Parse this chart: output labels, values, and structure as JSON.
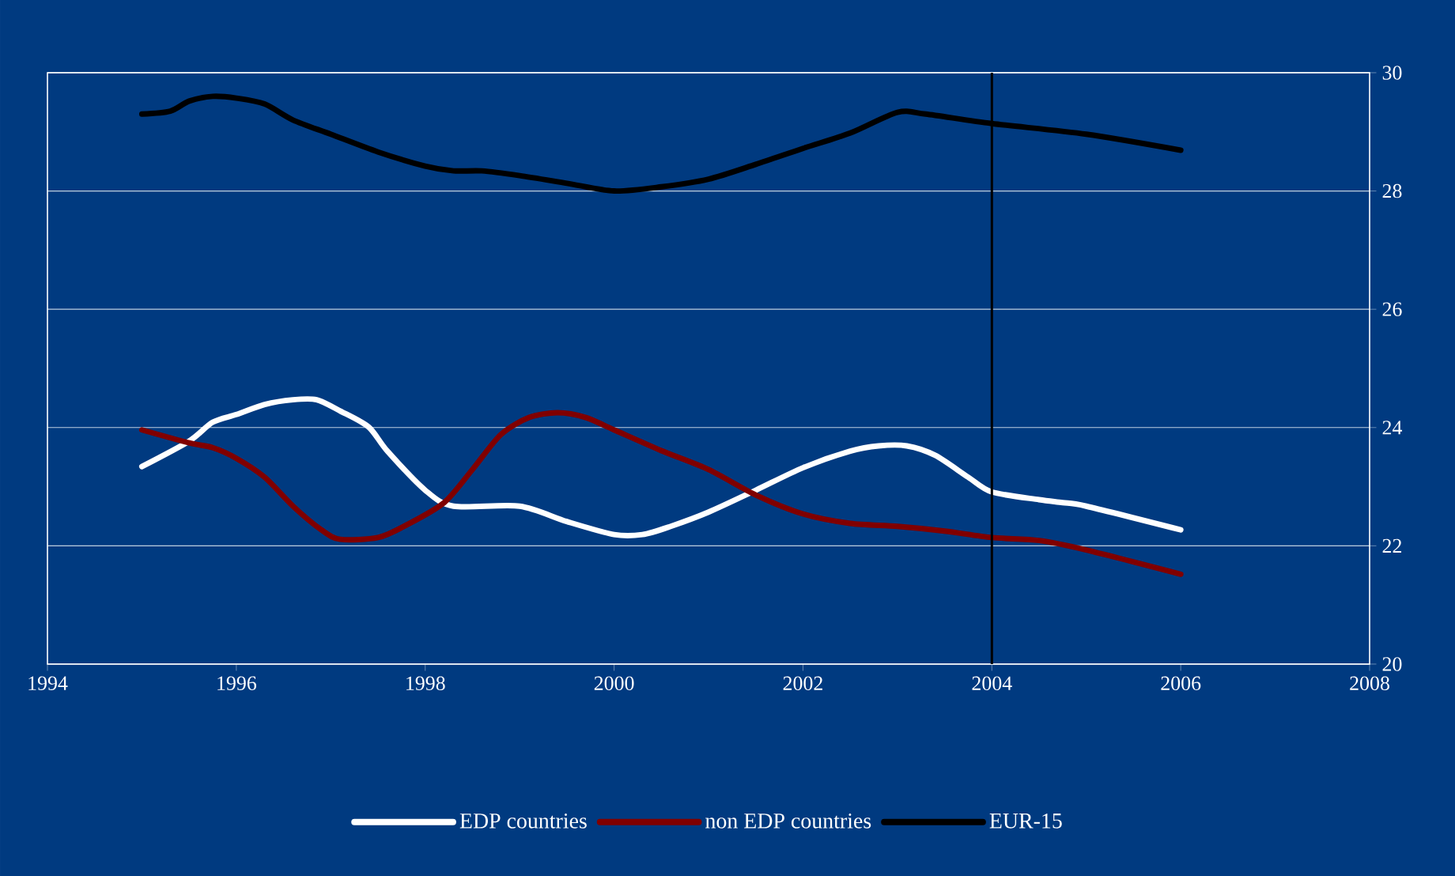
{
  "chart_data": {
    "type": "line",
    "series": [
      {
        "name": "EDP countries",
        "color": "#ffffff",
        "x": [
          1995,
          1995.5,
          1995.75,
          1996,
          1996.3,
          1996.6,
          1996.85,
          1997.1,
          1997.4,
          1997.6,
          1998,
          1998.3,
          1999,
          1999.5,
          2000,
          2000.3,
          2000.6,
          2001,
          2001.5,
          2002,
          2002.5,
          2002.8,
          2003.1,
          2003.4,
          2003.75,
          2004,
          2004.5,
          2004.75,
          2005,
          2006
        ],
        "values": [
          23.34,
          23.77,
          24.09,
          24.22,
          24.39,
          24.47,
          24.47,
          24.28,
          24.01,
          23.6,
          22.94,
          22.67,
          22.67,
          22.41,
          22.19,
          22.19,
          22.33,
          22.57,
          22.94,
          23.32,
          23.6,
          23.69,
          23.69,
          23.53,
          23.16,
          22.91,
          22.78,
          22.73,
          22.67,
          22.27
        ]
      },
      {
        "name": "non EDP countries",
        "color": "#800000",
        "x": [
          1995,
          1995.5,
          1995.75,
          1996,
          1996.3,
          1996.6,
          1996.9,
          1997.1,
          1997.5,
          1997.8,
          1998.2,
          1998.5,
          1998.8,
          1999.1,
          1999.4,
          1999.7,
          2000,
          2000.5,
          2001,
          2001.5,
          2002,
          2002.5,
          2003,
          2003.5,
          2004,
          2004.5,
          2005,
          2006
        ],
        "values": [
          23.96,
          23.74,
          23.66,
          23.48,
          23.16,
          22.67,
          22.27,
          22.11,
          22.14,
          22.35,
          22.73,
          23.29,
          23.88,
          24.17,
          24.25,
          24.17,
          23.96,
          23.61,
          23.29,
          22.86,
          22.54,
          22.38,
          22.33,
          22.25,
          22.14,
          22.09,
          21.93,
          21.52
        ]
      },
      {
        "name": "EUR-15",
        "color": "#000000",
        "x": [
          1995,
          1995.3,
          1995.5,
          1995.75,
          1996,
          1996.3,
          1996.6,
          1997,
          1997.5,
          1998,
          1998.3,
          1998.6,
          1999,
          1999.5,
          2000,
          2000.5,
          2001,
          2001.5,
          2002,
          2002.5,
          2003,
          2003.3,
          2004,
          2005,
          2006
        ],
        "values": [
          29.3,
          29.35,
          29.52,
          29.6,
          29.57,
          29.47,
          29.2,
          28.96,
          28.66,
          28.42,
          28.34,
          28.34,
          28.26,
          28.13,
          28.0,
          28.07,
          28.2,
          28.45,
          28.72,
          28.98,
          29.33,
          29.3,
          29.14,
          28.96,
          28.69
        ]
      }
    ],
    "xlim": [
      1994,
      2008
    ],
    "xticks": [
      1994,
      1996,
      1998,
      2000,
      2002,
      2004,
      2006,
      2008
    ],
    "ylim": [
      20,
      30
    ],
    "yticks": [
      20,
      22,
      24,
      26,
      28,
      30
    ],
    "grid": "y",
    "legend": "bottom",
    "ref_lines": [
      {
        "axis": "x",
        "value": 2004,
        "color": "#000000"
      }
    ]
  }
}
